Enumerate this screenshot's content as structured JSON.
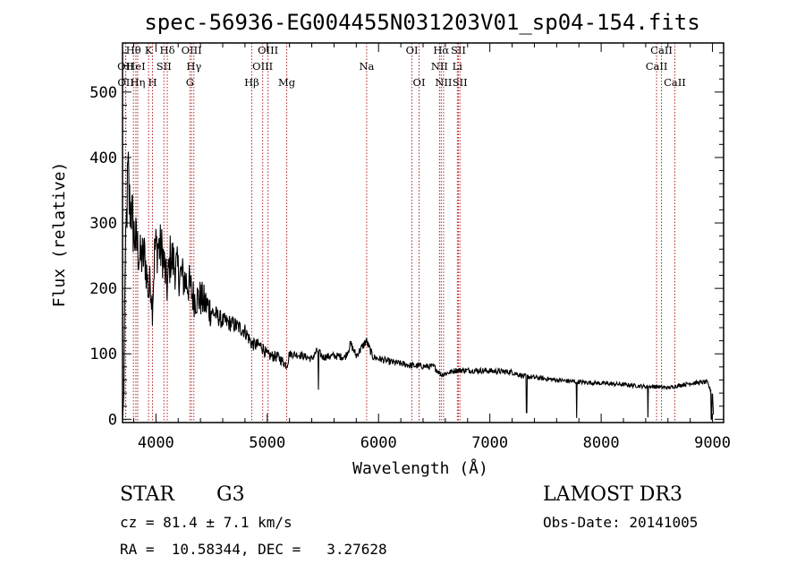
{
  "chart_data": {
    "type": "line",
    "title": "spec-56936-EG004455N031203V01_sp04-154.fits",
    "xlabel": "Wavelength (Å)",
    "ylabel": "Flux (relative)",
    "xlim": [
      3700,
      9100
    ],
    "ylim": [
      -5,
      575
    ],
    "xticks": [
      4000,
      5000,
      6000,
      7000,
      8000,
      9000
    ],
    "yticks": [
      0,
      100,
      200,
      300,
      400,
      500
    ],
    "series": [
      {
        "name": "flux",
        "anchors": [
          [
            3700,
            0
          ],
          [
            3712,
            40
          ],
          [
            3720,
            200
          ],
          [
            3735,
            300
          ],
          [
            3750,
            380
          ],
          [
            3760,
            330
          ],
          [
            3780,
            320
          ],
          [
            3800,
            285
          ],
          [
            3830,
            265
          ],
          [
            3860,
            245
          ],
          [
            3900,
            250
          ],
          [
            3935,
            190
          ],
          [
            3950,
            215
          ],
          [
            3968,
            170
          ],
          [
            3990,
            260
          ],
          [
            4020,
            265
          ],
          [
            4060,
            255
          ],
          [
            4101,
            200
          ],
          [
            4130,
            250
          ],
          [
            4200,
            225
          ],
          [
            4300,
            205
          ],
          [
            4340,
            185
          ],
          [
            4400,
            185
          ],
          [
            4500,
            165
          ],
          [
            4600,
            150
          ],
          [
            4700,
            145
          ],
          [
            4800,
            135
          ],
          [
            4861,
            115
          ],
          [
            4950,
            112
          ],
          [
            5000,
            98
          ],
          [
            5100,
            95
          ],
          [
            5175,
            82
          ],
          [
            5200,
            100
          ],
          [
            5300,
            98
          ],
          [
            5400,
            92
          ],
          [
            5450,
            105
          ],
          [
            5500,
            95
          ],
          [
            5600,
            97
          ],
          [
            5700,
            95
          ],
          [
            5750,
            115
          ],
          [
            5800,
            97
          ],
          [
            5890,
            120
          ],
          [
            5950,
            95
          ],
          [
            6100,
            88
          ],
          [
            6300,
            82
          ],
          [
            6500,
            80
          ],
          [
            6563,
            68
          ],
          [
            6700,
            75
          ],
          [
            7000,
            74
          ],
          [
            7200,
            72
          ],
          [
            7300,
            66
          ],
          [
            7400,
            64
          ],
          [
            7600,
            60
          ],
          [
            7800,
            57
          ],
          [
            8000,
            55
          ],
          [
            8200,
            53
          ],
          [
            8400,
            50
          ],
          [
            8500,
            50
          ],
          [
            8600,
            48
          ],
          [
            8800,
            55
          ],
          [
            8950,
            57
          ],
          [
            9000,
            38
          ],
          [
            9010,
            0
          ]
        ],
        "absorption_dips": [
          [
            5460,
            45
          ],
          [
            7330,
            10
          ],
          [
            7780,
            2
          ],
          [
            8420,
            3
          ],
          [
            8990,
            0
          ]
        ]
      }
    ],
    "line_markers": [
      {
        "label": "OII",
        "wavelength": 3727,
        "row": 1
      },
      {
        "label": "OII",
        "wavelength": 3729,
        "row": 2
      },
      {
        "label": "Hθ",
        "wavelength": 3798,
        "row": 0
      },
      {
        "label": "HeI",
        "wavelength": 3820,
        "row": 1
      },
      {
        "label": "Hη",
        "wavelength": 3836,
        "row": 2
      },
      {
        "label": "K",
        "wavelength": 3934,
        "row": 0
      },
      {
        "label": "H",
        "wavelength": 3969,
        "row": 2
      },
      {
        "label": "SII",
        "wavelength": 4072,
        "row": 1
      },
      {
        "label": "Hδ",
        "wavelength": 4102,
        "row": 0
      },
      {
        "label": "OIII",
        "wavelength": 4320,
        "row": 0
      },
      {
        "label": "Hγ",
        "wavelength": 4341,
        "row": 1
      },
      {
        "label": "G",
        "wavelength": 4305,
        "row": 2
      },
      {
        "label": "Hβ",
        "wavelength": 4861,
        "row": 2
      },
      {
        "label": "OIII",
        "wavelength": 4959,
        "row": 1
      },
      {
        "label": "OIII",
        "wavelength": 5007,
        "row": 0
      },
      {
        "label": "Mg",
        "wavelength": 5175,
        "row": 2
      },
      {
        "label": "Na",
        "wavelength": 5893,
        "row": 1
      },
      {
        "label": "OI",
        "wavelength": 6300,
        "row": 0
      },
      {
        "label": "OI",
        "wavelength": 6364,
        "row": 2
      },
      {
        "label": "NII",
        "wavelength": 6548,
        "row": 1
      },
      {
        "label": "Hα",
        "wavelength": 6563,
        "row": 0
      },
      {
        "label": "NII",
        "wavelength": 6584,
        "row": 2
      },
      {
        "label": "Li",
        "wavelength": 6708,
        "row": 1
      },
      {
        "label": "SII",
        "wavelength": 6717,
        "row": 0
      },
      {
        "label": "SII",
        "wavelength": 6731,
        "row": 2
      },
      {
        "label": "CaII",
        "wavelength": 8498,
        "row": 1
      },
      {
        "label": "CaII",
        "wavelength": 8542,
        "row": 0
      },
      {
        "label": "CaII",
        "wavelength": 8662,
        "row": 2
      }
    ],
    "colors": {
      "spectrum": "#000000",
      "marker": "#b22222",
      "axes": "#000000"
    }
  },
  "info": {
    "object_class": "STAR",
    "subclass": "G3",
    "survey": "LAMOST DR3",
    "redshift": "cz = 81.4 ± 7.1 km/s",
    "obs_date": "Obs-Date: 20141005",
    "coords": "RA =  10.58344, DEC =   3.27628"
  }
}
